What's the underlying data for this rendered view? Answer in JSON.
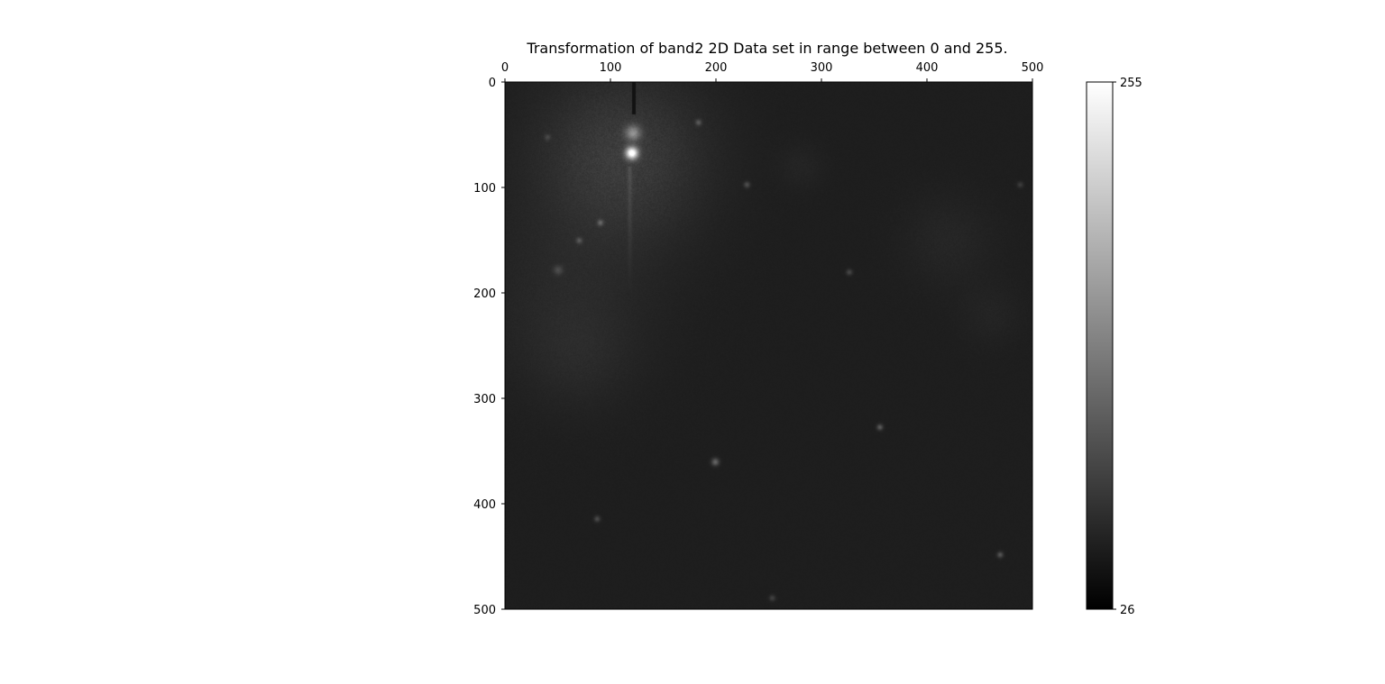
{
  "chart_data": {
    "type": "heatmap",
    "title": "Transformation of band2 2D Data set in range between 0 and 255.",
    "xlabel": "",
    "ylabel": "",
    "xlim": [
      0,
      500
    ],
    "ylim": [
      500,
      0
    ],
    "x_ticks": [
      0,
      100,
      200,
      300,
      400,
      500
    ],
    "y_ticks": [
      0,
      100,
      200,
      300,
      400,
      500
    ],
    "x_axis_position": "top",
    "grid": false,
    "colormap": "gray",
    "background_value": 30,
    "colorbar": {
      "min": 26,
      "max": 255,
      "ticks": [
        255,
        26
      ],
      "position": "right"
    },
    "bright_sources": [
      {
        "x": 120,
        "y": 67,
        "value": 255,
        "spread": 4
      },
      {
        "x": 121,
        "y": 48,
        "value": 120,
        "spread": 5
      },
      {
        "x": 183,
        "y": 38,
        "value": 80,
        "spread": 2
      },
      {
        "x": 90,
        "y": 133,
        "value": 85,
        "spread": 2
      },
      {
        "x": 70,
        "y": 150,
        "value": 75,
        "spread": 2
      },
      {
        "x": 229,
        "y": 97,
        "value": 75,
        "spread": 2
      },
      {
        "x": 326,
        "y": 180,
        "value": 70,
        "spread": 2
      },
      {
        "x": 355,
        "y": 327,
        "value": 90,
        "spread": 2
      },
      {
        "x": 199,
        "y": 360,
        "value": 100,
        "spread": 2.5
      },
      {
        "x": 87,
        "y": 414,
        "value": 75,
        "spread": 2
      },
      {
        "x": 469,
        "y": 448,
        "value": 85,
        "spread": 2
      },
      {
        "x": 253,
        "y": 489,
        "value": 65,
        "spread": 2
      },
      {
        "x": 488,
        "y": 97,
        "value": 60,
        "spread": 2
      },
      {
        "x": 40,
        "y": 52,
        "value": 60,
        "spread": 2
      },
      {
        "x": 50,
        "y": 178,
        "value": 65,
        "spread": 3
      }
    ],
    "diffuse_regions": [
      {
        "x": 110,
        "y": 70,
        "value": 60,
        "spread": 55
      },
      {
        "x": 60,
        "y": 200,
        "value": 40,
        "spread": 60
      },
      {
        "x": 70,
        "y": 260,
        "value": 38,
        "spread": 35
      },
      {
        "x": 280,
        "y": 80,
        "value": 36,
        "spread": 15
      },
      {
        "x": 420,
        "y": 150,
        "value": 38,
        "spread": 30
      },
      {
        "x": 460,
        "y": 220,
        "value": 36,
        "spread": 20
      }
    ],
    "dark_streak": {
      "x": 122,
      "y_from": 0,
      "y_to": 30
    },
    "bright_streak": {
      "x": 118,
      "y_from": 80,
      "y_to": 200
    }
  }
}
